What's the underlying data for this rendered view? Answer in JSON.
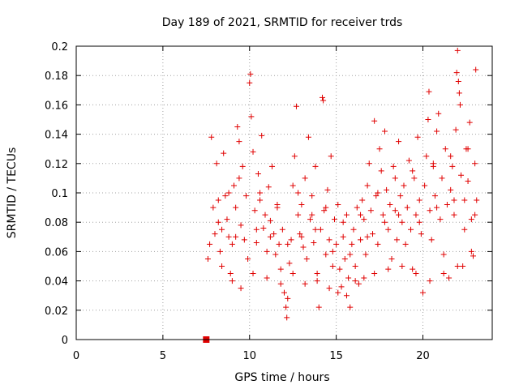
{
  "chart_data": {
    "type": "scatter",
    "title": "Day 189 of 2021, SRMTID for receiver trds",
    "xlabel": "GPS time / hours",
    "ylabel": "SRMTID / TECUs",
    "xlim": [
      0,
      24
    ],
    "ylim": [
      0,
      0.2
    ],
    "x_ticks": [
      0,
      5,
      10,
      15,
      20
    ],
    "y_ticks": [
      0,
      0.02,
      0.04,
      0.06,
      0.08,
      0.1,
      0.12,
      0.14,
      0.16,
      0.18,
      0.2
    ],
    "x_tick_labels": [
      "0",
      "5",
      "10",
      "15",
      "20"
    ],
    "y_tick_labels": [
      "0",
      "0.02",
      "0.04",
      "0.06",
      "0.08",
      "0.1",
      "0.12",
      "0.14",
      "0.16",
      "0.18",
      "0.2"
    ],
    "grid": true,
    "marker": "plus",
    "color": "#e00000",
    "marker_point": {
      "x": 7.5,
      "y": 0
    },
    "series": [
      {
        "values": [
          [
            7.6,
            0.055
          ],
          [
            7.7,
            0.065
          ],
          [
            7.8,
            0.138
          ],
          [
            7.9,
            0.09
          ],
          [
            8.0,
            0.072
          ],
          [
            8.1,
            0.12
          ],
          [
            8.2,
            0.08
          ],
          [
            8.3,
            0.06
          ],
          [
            8.4,
            0.05
          ],
          [
            8.5,
            0.127
          ],
          [
            8.6,
            0.098
          ],
          [
            8.7,
            0.082
          ],
          [
            8.8,
            0.07
          ],
          [
            8.9,
            0.045
          ],
          [
            9.0,
            0.065
          ],
          [
            9.1,
            0.105
          ],
          [
            9.2,
            0.09
          ],
          [
            9.3,
            0.145
          ],
          [
            9.4,
            0.135
          ],
          [
            9.5,
            0.078
          ],
          [
            9.6,
            0.118
          ],
          [
            9.7,
            0.068
          ],
          [
            9.8,
            0.098
          ],
          [
            9.9,
            0.055
          ],
          [
            10.0,
            0.175
          ],
          [
            10.05,
            0.181
          ],
          [
            10.1,
            0.152
          ],
          [
            10.2,
            0.128
          ],
          [
            10.3,
            0.088
          ],
          [
            10.4,
            0.066
          ],
          [
            10.5,
            0.113
          ],
          [
            10.6,
            0.095
          ],
          [
            10.7,
            0.139
          ],
          [
            10.8,
            0.076
          ],
          [
            10.9,
            0.085
          ],
          [
            11.0,
            0.06
          ],
          [
            11.1,
            0.104
          ],
          [
            11.2,
            0.081
          ],
          [
            11.3,
            0.118
          ],
          [
            11.4,
            0.072
          ],
          [
            11.5,
            0.058
          ],
          [
            11.6,
            0.092
          ],
          [
            11.7,
            0.065
          ],
          [
            11.8,
            0.048
          ],
          [
            11.9,
            0.075
          ],
          [
            12.0,
            0.032
          ],
          [
            12.1,
            0.022
          ],
          [
            12.15,
            0.015
          ],
          [
            12.2,
            0.028
          ],
          [
            12.3,
            0.052
          ],
          [
            12.4,
            0.068
          ],
          [
            12.5,
            0.105
          ],
          [
            12.6,
            0.125
          ],
          [
            12.7,
            0.159
          ],
          [
            12.8,
            0.085
          ],
          [
            12.9,
            0.072
          ],
          [
            13.0,
            0.092
          ],
          [
            13.1,
            0.063
          ],
          [
            13.2,
            0.11
          ],
          [
            13.3,
            0.055
          ],
          [
            13.4,
            0.138
          ],
          [
            13.5,
            0.082
          ],
          [
            13.6,
            0.098
          ],
          [
            13.7,
            0.066
          ],
          [
            13.8,
            0.118
          ],
          [
            13.9,
            0.045
          ],
          [
            14.0,
            0.022
          ],
          [
            14.1,
            0.075
          ],
          [
            14.2,
            0.165
          ],
          [
            14.25,
            0.163
          ],
          [
            14.3,
            0.088
          ],
          [
            14.4,
            0.058
          ],
          [
            14.5,
            0.102
          ],
          [
            14.6,
            0.068
          ],
          [
            14.7,
            0.125
          ],
          [
            14.8,
            0.05
          ],
          [
            14.9,
            0.082
          ],
          [
            15.0,
            0.065
          ],
          [
            15.1,
            0.092
          ],
          [
            15.2,
            0.048
          ],
          [
            15.3,
            0.036
          ],
          [
            15.4,
            0.07
          ],
          [
            15.5,
            0.055
          ],
          [
            15.6,
            0.085
          ],
          [
            15.7,
            0.042
          ],
          [
            15.8,
            0.022
          ],
          [
            15.9,
            0.065
          ],
          [
            16.0,
            0.075
          ],
          [
            16.1,
            0.05
          ],
          [
            16.2,
            0.09
          ],
          [
            16.3,
            0.038
          ],
          [
            16.4,
            0.068
          ],
          [
            16.5,
            0.095
          ],
          [
            16.6,
            0.082
          ],
          [
            16.7,
            0.058
          ],
          [
            16.8,
            0.105
          ],
          [
            16.9,
            0.12
          ],
          [
            17.0,
            0.088
          ],
          [
            17.1,
            0.072
          ],
          [
            17.2,
            0.149
          ],
          [
            17.3,
            0.098
          ],
          [
            17.4,
            0.065
          ],
          [
            17.5,
            0.13
          ],
          [
            17.6,
            0.115
          ],
          [
            17.7,
            0.085
          ],
          [
            17.8,
            0.142
          ],
          [
            17.9,
            0.102
          ],
          [
            18.0,
            0.075
          ],
          [
            18.1,
            0.092
          ],
          [
            18.2,
            0.055
          ],
          [
            18.3,
            0.118
          ],
          [
            18.4,
            0.088
          ],
          [
            18.5,
            0.068
          ],
          [
            18.6,
            0.135
          ],
          [
            18.7,
            0.098
          ],
          [
            18.8,
            0.08
          ],
          [
            18.9,
            0.105
          ],
          [
            19.0,
            0.065
          ],
          [
            19.1,
            0.09
          ],
          [
            19.2,
            0.122
          ],
          [
            19.3,
            0.075
          ],
          [
            19.4,
            0.048
          ],
          [
            19.5,
            0.11
          ],
          [
            19.6,
            0.085
          ],
          [
            19.7,
            0.138
          ],
          [
            19.8,
            0.095
          ],
          [
            19.9,
            0.072
          ],
          [
            20.0,
            0.032
          ],
          [
            20.1,
            0.105
          ],
          [
            20.2,
            0.125
          ],
          [
            20.3,
            0.15
          ],
          [
            20.35,
            0.169
          ],
          [
            20.4,
            0.088
          ],
          [
            20.5,
            0.068
          ],
          [
            20.6,
            0.118
          ],
          [
            20.7,
            0.098
          ],
          [
            20.8,
            0.142
          ],
          [
            20.9,
            0.154
          ],
          [
            21.0,
            0.082
          ],
          [
            21.1,
            0.11
          ],
          [
            21.2,
            0.058
          ],
          [
            21.3,
            0.13
          ],
          [
            21.4,
            0.092
          ],
          [
            21.5,
            0.042
          ],
          [
            21.6,
            0.102
          ],
          [
            21.7,
            0.118
          ],
          [
            21.8,
            0.085
          ],
          [
            21.9,
            0.143
          ],
          [
            21.95,
            0.182
          ],
          [
            22.0,
            0.197
          ],
          [
            22.05,
            0.176
          ],
          [
            22.1,
            0.168
          ],
          [
            22.15,
            0.16
          ],
          [
            22.2,
            0.112
          ],
          [
            22.3,
            0.05
          ],
          [
            22.4,
            0.095
          ],
          [
            22.5,
            0.13
          ],
          [
            22.6,
            0.108
          ],
          [
            22.7,
            0.148
          ],
          [
            22.8,
            0.082
          ],
          [
            22.9,
            0.057
          ],
          [
            23.0,
            0.12
          ],
          [
            23.05,
            0.184
          ],
          [
            23.1,
            0.095
          ],
          [
            9.0,
            0.04
          ],
          [
            9.5,
            0.035
          ],
          [
            10.2,
            0.045
          ],
          [
            11.0,
            0.042
          ],
          [
            11.8,
            0.038
          ],
          [
            12.5,
            0.045
          ],
          [
            13.2,
            0.038
          ],
          [
            13.9,
            0.04
          ],
          [
            14.6,
            0.035
          ],
          [
            15.1,
            0.032
          ],
          [
            15.6,
            0.03
          ],
          [
            16.1,
            0.04
          ],
          [
            16.6,
            0.042
          ],
          [
            17.2,
            0.045
          ],
          [
            18.0,
            0.048
          ],
          [
            18.8,
            0.05
          ],
          [
            19.6,
            0.045
          ],
          [
            20.4,
            0.04
          ],
          [
            21.2,
            0.045
          ],
          [
            22.0,
            0.05
          ],
          [
            22.8,
            0.06
          ],
          [
            8.2,
            0.095
          ],
          [
            8.8,
            0.1
          ],
          [
            9.4,
            0.11
          ],
          [
            10.6,
            0.1
          ],
          [
            11.6,
            0.09
          ],
          [
            12.8,
            0.1
          ],
          [
            13.6,
            0.085
          ],
          [
            14.4,
            0.09
          ],
          [
            15.4,
            0.08
          ],
          [
            16.4,
            0.085
          ],
          [
            17.4,
            0.1
          ],
          [
            18.4,
            0.11
          ],
          [
            19.4,
            0.115
          ],
          [
            20.6,
            0.12
          ],
          [
            21.6,
            0.125
          ],
          [
            22.6,
            0.13
          ],
          [
            8.4,
            0.075
          ],
          [
            9.2,
            0.07
          ],
          [
            10.4,
            0.075
          ],
          [
            11.2,
            0.07
          ],
          [
            12.2,
            0.065
          ],
          [
            13.0,
            0.07
          ],
          [
            13.8,
            0.075
          ],
          [
            14.8,
            0.06
          ],
          [
            15.8,
            0.058
          ],
          [
            16.8,
            0.07
          ],
          [
            17.8,
            0.08
          ],
          [
            18.6,
            0.085
          ],
          [
            19.8,
            0.08
          ],
          [
            20.8,
            0.09
          ],
          [
            21.8,
            0.095
          ],
          [
            22.4,
            0.075
          ],
          [
            23.0,
            0.085
          ]
        ]
      }
    ]
  }
}
